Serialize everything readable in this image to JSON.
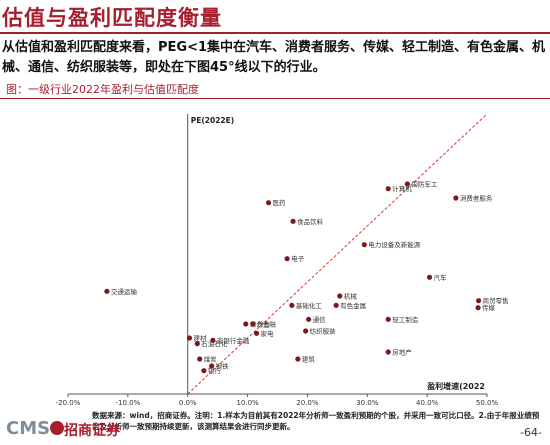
{
  "header": {
    "title": "估值与盈利匹配度衡量",
    "paragraph": "从估值和盈利匹配度来看，PEG<1集中在汽车、消费者服务、传媒、轻工制造、有色金属、机械、通信、纺织服装等，即处在下图45°线以下的行业。"
  },
  "chart_data": {
    "type": "scatter",
    "title": "图：一级行业2022年盈利与估值匹配度",
    "ylabel": "PE(2022E)",
    "xlabel": "盈利增速(2022",
    "xlim": [
      -20,
      50
    ],
    "x_ticks": [
      "-20.0%",
      "-10.0%",
      "0.0%",
      "10.0%",
      "20.0%",
      "30.0%",
      "40.0%",
      "50.0%"
    ],
    "x_tick_values": [
      -20,
      -10,
      0,
      10,
      20,
      30,
      40,
      50
    ],
    "ylim": [
      0,
      60
    ],
    "reference_line": "45-degree dashed line",
    "point_color": "#7b1a1a",
    "line_color": "#d93838",
    "points": [
      {
        "label": "交通运输",
        "x": -13.5,
        "y": 22
      },
      {
        "label": "建材",
        "x": 0.3,
        "y": 12
      },
      {
        "label": "石油石化",
        "x": 1.6,
        "y": 10.8
      },
      {
        "label": "煤炭",
        "x": 2.0,
        "y": 7.5
      },
      {
        "label": "钢铁",
        "x": 4.0,
        "y": 6.0
      },
      {
        "label": "银行",
        "x": 2.7,
        "y": 5.0
      },
      {
        "label": "非银行金融",
        "x": 4.2,
        "y": 11.5
      },
      {
        "label": "综合金融",
        "x": 9.7,
        "y": 15
      },
      {
        "label": "综合",
        "x": 10.9,
        "y": 15
      },
      {
        "label": "家电",
        "x": 11.5,
        "y": 13
      },
      {
        "label": "基础化工",
        "x": 17.4,
        "y": 19
      },
      {
        "label": "通信",
        "x": 20.2,
        "y": 16
      },
      {
        "label": "纺织服装",
        "x": 19.7,
        "y": 13.5
      },
      {
        "label": "建筑",
        "x": 18.4,
        "y": 7.5
      },
      {
        "label": "机械",
        "x": 25.4,
        "y": 21
      },
      {
        "label": "有色金属",
        "x": 24.8,
        "y": 19
      },
      {
        "label": "医药",
        "x": 13.5,
        "y": 41
      },
      {
        "label": "食品饮料",
        "x": 17.6,
        "y": 37
      },
      {
        "label": "电子",
        "x": 16.6,
        "y": 29
      },
      {
        "label": "电力设备及新能源",
        "x": 29.5,
        "y": 32
      },
      {
        "label": "计算机",
        "x": 33.5,
        "y": 44
      },
      {
        "label": "国防军工",
        "x": 36.7,
        "y": 45
      },
      {
        "label": "消费者服务",
        "x": 44.8,
        "y": 42
      },
      {
        "label": "汽车",
        "x": 40.4,
        "y": 25
      },
      {
        "label": "商贸零售",
        "x": 48.6,
        "y": 20
      },
      {
        "label": "传媒",
        "x": 48.5,
        "y": 18.5
      },
      {
        "label": "轻工制造",
        "x": 33.5,
        "y": 16
      },
      {
        "label": "房地产",
        "x": 33.5,
        "y": 9
      }
    ]
  },
  "footer": {
    "source": "数据来源：wind，招商证券。注明：1.样本为目前其有2022年分析师一致盈利预期的个股，并采用一致可比口径。2.由于年报业绩预告及分析师一致预期持续更新，该测算结果会进行同步更新。",
    "logo_text": "CMS",
    "logo_cn": "招商证券",
    "page_number": "-64-"
  }
}
